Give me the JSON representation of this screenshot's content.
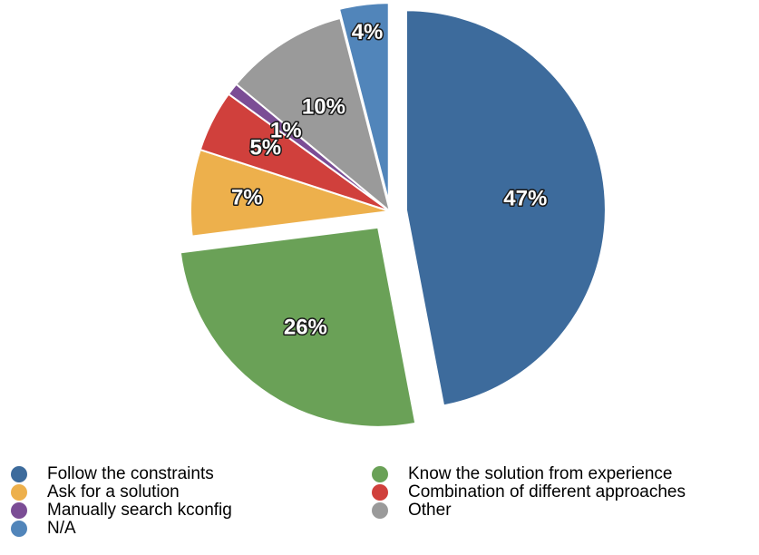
{
  "chart_data": {
    "type": "pie",
    "title": "",
    "slices": [
      {
        "label": "Follow the constraints",
        "value": 47,
        "display": "47%",
        "color": "#3d6b9c",
        "exploded": true
      },
      {
        "label": "Know the solution from experience",
        "value": 26,
        "display": "26%",
        "color": "#6aa157",
        "exploded": true
      },
      {
        "label": "Ask for a solution",
        "value": 7,
        "display": "7%",
        "color": "#edb04c",
        "exploded": false
      },
      {
        "label": "Combination of different approaches",
        "value": 5,
        "display": "5%",
        "color": "#d0403c",
        "exploded": false
      },
      {
        "label": "Manually search kconfig",
        "value": 1,
        "display": "1%",
        "color": "#7b4d95",
        "exploded": false
      },
      {
        "label": "Other",
        "value": 10,
        "display": "10%",
        "color": "#9a9a9a",
        "exploded": false
      },
      {
        "label": "N/A",
        "value": 4,
        "display": "4%",
        "color": "#5185ba",
        "exploded": true
      }
    ],
    "legend": {
      "placement": "bottom",
      "columns": [
        [
          "Follow the constraints",
          "Ask for a solution",
          "Manually search kconfig",
          "N/A"
        ],
        [
          "Know the solution from experience",
          "Combination of different approaches",
          "Other"
        ]
      ]
    }
  }
}
